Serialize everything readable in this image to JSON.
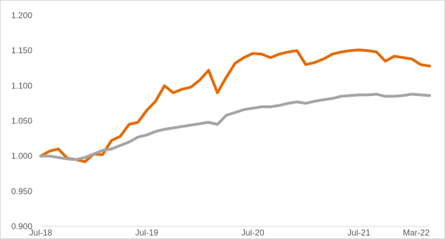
{
  "chart_data": {
    "type": "line",
    "title": "",
    "xlabel": "",
    "ylabel": "",
    "ylim": [
      0.9,
      1.2
    ],
    "xlim": [
      "2018-07",
      "2022-03"
    ],
    "grid": false,
    "legend": "none",
    "y_ticks": [
      "0.900",
      "0.950",
      "1.000",
      "1.050",
      "1.100",
      "1.150",
      "1.200"
    ],
    "x_ticks": [
      {
        "label": "Jul-18",
        "date": "2018-07"
      },
      {
        "label": "Jul-19",
        "date": "2019-07"
      },
      {
        "label": "Jul-20",
        "date": "2020-07"
      },
      {
        "label": "Jul-21",
        "date": "2021-07"
      },
      {
        "label": "Mar-22",
        "date": "2022-03"
      }
    ],
    "series": [
      {
        "color": "#E36C0A",
        "points": [
          [
            "2018-07",
            1.0
          ],
          [
            "2018-08",
            1.007
          ],
          [
            "2018-09",
            1.01
          ],
          [
            "2018-10",
            0.997
          ],
          [
            "2018-11",
            0.995
          ],
          [
            "2018-12",
            0.992
          ],
          [
            "2019-01",
            1.003
          ],
          [
            "2019-02",
            1.002
          ],
          [
            "2019-03",
            1.022
          ],
          [
            "2019-04",
            1.028
          ],
          [
            "2019-05",
            1.045
          ],
          [
            "2019-06",
            1.048
          ],
          [
            "2019-07",
            1.065
          ],
          [
            "2019-08",
            1.078
          ],
          [
            "2019-09",
            1.1
          ],
          [
            "2019-10",
            1.09
          ],
          [
            "2019-11",
            1.095
          ],
          [
            "2019-12",
            1.098
          ],
          [
            "2020-01",
            1.108
          ],
          [
            "2020-02",
            1.122
          ],
          [
            "2020-03",
            1.09
          ],
          [
            "2020-04",
            1.112
          ],
          [
            "2020-05",
            1.132
          ],
          [
            "2020-06",
            1.14
          ],
          [
            "2020-07",
            1.146
          ],
          [
            "2020-08",
            1.145
          ],
          [
            "2020-09",
            1.14
          ],
          [
            "2020-10",
            1.145
          ],
          [
            "2020-11",
            1.148
          ],
          [
            "2020-12",
            1.15
          ],
          [
            "2021-01",
            1.13
          ],
          [
            "2021-02",
            1.133
          ],
          [
            "2021-03",
            1.138
          ],
          [
            "2021-04",
            1.145
          ],
          [
            "2021-05",
            1.148
          ],
          [
            "2021-06",
            1.15
          ],
          [
            "2021-07",
            1.151
          ],
          [
            "2021-08",
            1.15
          ],
          [
            "2021-09",
            1.148
          ],
          [
            "2021-10",
            1.135
          ],
          [
            "2021-11",
            1.142
          ],
          [
            "2021-12",
            1.14
          ],
          [
            "2022-01",
            1.138
          ],
          [
            "2022-02",
            1.13
          ],
          [
            "2022-03",
            1.128
          ]
        ]
      },
      {
        "color": "#A5A5A5",
        "points": [
          [
            "2018-07",
            1.0
          ],
          [
            "2018-08",
            1.0
          ],
          [
            "2018-09",
            0.998
          ],
          [
            "2018-10",
            0.996
          ],
          [
            "2018-11",
            0.995
          ],
          [
            "2018-12",
            0.998
          ],
          [
            "2019-01",
            1.003
          ],
          [
            "2019-02",
            1.008
          ],
          [
            "2019-03",
            1.01
          ],
          [
            "2019-04",
            1.015
          ],
          [
            "2019-05",
            1.02
          ],
          [
            "2019-06",
            1.027
          ],
          [
            "2019-07",
            1.03
          ],
          [
            "2019-08",
            1.035
          ],
          [
            "2019-09",
            1.038
          ],
          [
            "2019-10",
            1.04
          ],
          [
            "2019-11",
            1.042
          ],
          [
            "2019-12",
            1.044
          ],
          [
            "2020-01",
            1.046
          ],
          [
            "2020-02",
            1.048
          ],
          [
            "2020-03",
            1.045
          ],
          [
            "2020-04",
            1.058
          ],
          [
            "2020-05",
            1.062
          ],
          [
            "2020-06",
            1.066
          ],
          [
            "2020-07",
            1.068
          ],
          [
            "2020-08",
            1.07
          ],
          [
            "2020-09",
            1.07
          ],
          [
            "2020-10",
            1.072
          ],
          [
            "2020-11",
            1.075
          ],
          [
            "2020-12",
            1.077
          ],
          [
            "2021-01",
            1.075
          ],
          [
            "2021-02",
            1.078
          ],
          [
            "2021-03",
            1.08
          ],
          [
            "2021-04",
            1.082
          ],
          [
            "2021-05",
            1.085
          ],
          [
            "2021-06",
            1.086
          ],
          [
            "2021-07",
            1.087
          ],
          [
            "2021-08",
            1.087
          ],
          [
            "2021-09",
            1.088
          ],
          [
            "2021-10",
            1.085
          ],
          [
            "2021-11",
            1.085
          ],
          [
            "2021-12",
            1.086
          ],
          [
            "2022-01",
            1.088
          ],
          [
            "2022-02",
            1.087
          ],
          [
            "2022-03",
            1.086
          ]
        ]
      }
    ]
  }
}
